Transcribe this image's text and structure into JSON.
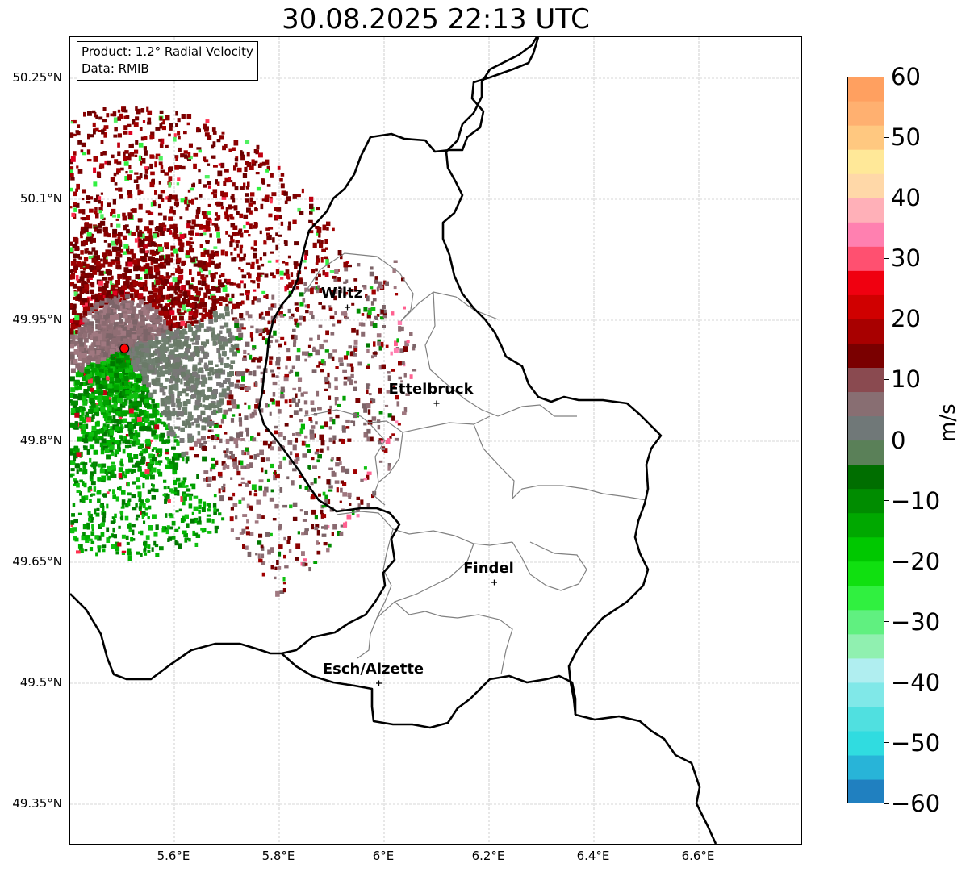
{
  "title": "30.08.2025 22:13 UTC",
  "info": {
    "product": "Product: 1.2° Radial Velocity",
    "source": "Data: RMIB"
  },
  "lat_labels": [
    "50.25°N",
    "50.1°N",
    "49.95°N",
    "49.8°N",
    "49.65°N",
    "49.5°N",
    "49.35°N"
  ],
  "lon_labels": [
    "5.6°E",
    "5.8°E",
    "6°E",
    "6.2°E",
    "6.4°E",
    "6.6°E"
  ],
  "cities": [
    {
      "name": "Wiltz",
      "lon": 5.93,
      "lat": 49.966
    },
    {
      "name": "Ettelbruck",
      "lon": 6.1,
      "lat": 49.847
    },
    {
      "name": "Findel",
      "lon": 6.21,
      "lat": 49.625
    },
    {
      "name": "Esch/Alzette",
      "lon": 5.99,
      "lat": 49.5
    }
  ],
  "radar_site": {
    "lon": 5.505,
    "lat": 49.915,
    "color": "#ff0000"
  },
  "colorbar": {
    "unit": "m/s",
    "min": -60,
    "max": 60,
    "ticks": [
      "60",
      "50",
      "40",
      "30",
      "20",
      "10",
      "0",
      "−10",
      "−20",
      "−30",
      "−40",
      "−50",
      "−60"
    ],
    "colors": [
      "#2080c0",
      "#28b4d8",
      "#30dce0",
      "#50e0e0",
      "#80e8e8",
      "#b0eef0",
      "#90f0b0",
      "#60f080",
      "#30f040",
      "#10e010",
      "#00c800",
      "#00a800",
      "#008c00",
      "#006e00",
      "#5a8058",
      "#707878",
      "#886e72",
      "#8a4a50",
      "#7a0000",
      "#a80000",
      "#d00000",
      "#f00010",
      "#ff5070",
      "#ff80b0",
      "#ffb0b8",
      "#ffd8a8",
      "#ffe898",
      "#ffc880",
      "#ffb070",
      "#ffa060"
    ]
  }
}
